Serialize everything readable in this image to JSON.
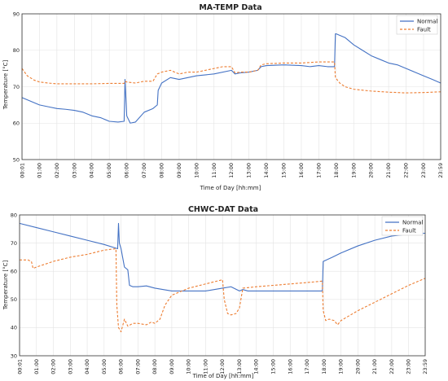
{
  "chart_data": [
    {
      "type": "line",
      "title": "MA-TEMP Data",
      "xlabel": "Time of Day [hh:mm]",
      "ylabel": "Temperature [°C]",
      "ylim": [
        50,
        90
      ],
      "yticks": [
        "50",
        "60",
        "70",
        "80",
        "90"
      ],
      "xticks": [
        "00:01",
        "01:00",
        "02:00",
        "03:00",
        "04:00",
        "05:00",
        "06:00",
        "07:00",
        "08:00",
        "09:00",
        "10:00",
        "11:00",
        "12:00",
        "13:00",
        "14:00",
        "15:00",
        "16:00",
        "17:00",
        "18:00",
        "19:00",
        "20:00",
        "21:00",
        "22:00",
        "23:00",
        "23:59"
      ],
      "grid": true,
      "legend_position": "top-right",
      "series": [
        {
          "name": "Normal",
          "color": "#4472c4",
          "style": "solid",
          "x": [
            0,
            0.5,
            1,
            1.5,
            2,
            2.5,
            3,
            3.5,
            4,
            4.5,
            5,
            5.5,
            5.85,
            5.9,
            6.0,
            6.2,
            6.5,
            7.0,
            7.5,
            7.75,
            7.8,
            8.0,
            8.5,
            9.0,
            9.5,
            10,
            11,
            12,
            12.2,
            12.5,
            13,
            13.5,
            13.7,
            14,
            15,
            16,
            16.5,
            17,
            17.5,
            17.9,
            17.95,
            18.0,
            18.5,
            19,
            19.5,
            20,
            20.5,
            21,
            21.5,
            22,
            22.5,
            23,
            23.5,
            23.98
          ],
          "y": [
            67,
            66,
            65,
            64.5,
            64,
            63.8,
            63.5,
            63,
            62,
            61.5,
            60.5,
            60.3,
            60.5,
            72,
            62,
            60,
            60.3,
            63,
            64,
            65,
            69,
            71,
            72.5,
            72,
            72.5,
            73,
            73.5,
            74.5,
            73.5,
            73.8,
            74,
            74.5,
            75.5,
            75.8,
            76,
            75.8,
            75.5,
            75.8,
            75.5,
            75.5,
            84.5,
            84.5,
            83.5,
            81.5,
            80,
            78.5,
            77.5,
            76.5,
            76,
            75,
            74,
            73,
            72,
            71
          ]
        },
        {
          "name": "Fault",
          "color": "#ed7d31",
          "style": "dashed",
          "x": [
            0,
            0.3,
            0.7,
            1,
            1.5,
            2,
            3,
            4,
            5,
            5.85,
            5.9,
            6.0,
            6.5,
            7.0,
            7.5,
            7.75,
            8.0,
            8.5,
            9.0,
            9.5,
            10,
            11,
            11.5,
            12,
            12.2,
            12.5,
            13,
            13.5,
            13.7,
            14,
            15,
            16,
            17,
            17.9,
            17.95,
            18.2,
            18.5,
            19,
            20,
            21,
            22,
            23,
            23.98
          ],
          "y": [
            75,
            73,
            71.8,
            71.3,
            71,
            70.8,
            70.8,
            70.8,
            70.9,
            70.9,
            71.5,
            71.3,
            71,
            71.5,
            71.5,
            73.5,
            74,
            74.5,
            73.5,
            74,
            74,
            75,
            75.5,
            75.5,
            73.8,
            74,
            74,
            74.5,
            76,
            76.3,
            76.5,
            76.5,
            76.8,
            76.8,
            72.5,
            71,
            70,
            69.3,
            68.8,
            68.5,
            68.3,
            68.4,
            68.6
          ]
        }
      ]
    },
    {
      "type": "line",
      "title": "CHWC-DAT Data",
      "xlabel": "Time of Day [hh:mm]",
      "ylabel": "Temperature [°C]",
      "ylim": [
        30,
        80
      ],
      "yticks": [
        "30",
        "40",
        "50",
        "60",
        "70",
        "80"
      ],
      "xticks": [
        "00:01",
        "01:00",
        "02:00",
        "03:00",
        "04:00",
        "05:00",
        "06:00",
        "07:00",
        "08:00",
        "09:00",
        "10:00",
        "11:00",
        "12:00",
        "13:00",
        "14:00",
        "15:00",
        "16:00",
        "17:00",
        "18:00",
        "19:00",
        "20:00",
        "21:00",
        "22:00",
        "23:00",
        "23:59"
      ],
      "grid": true,
      "legend_position": "top-right",
      "series": [
        {
          "name": "Normal",
          "color": "#4472c4",
          "style": "solid",
          "x": [
            0,
            1,
            2,
            3,
            4,
            5,
            5.8,
            5.85,
            5.9,
            6.0,
            6.2,
            6.4,
            6.5,
            6.7,
            7.0,
            7.5,
            8.0,
            8.5,
            9.0,
            10,
            11,
            12,
            12.5,
            13.0,
            13.2,
            13.5,
            14,
            15,
            16,
            17,
            17.9,
            17.95,
            18.5,
            19,
            20,
            21,
            22,
            23,
            23.98
          ],
          "y": [
            77,
            75.5,
            74,
            72.5,
            71,
            69.5,
            68,
            77,
            70,
            68,
            61.5,
            60.5,
            55,
            54.5,
            54.5,
            54.8,
            54,
            53.5,
            53,
            53,
            53,
            54,
            54.5,
            53,
            53.5,
            53,
            53,
            53,
            53,
            53,
            53,
            63.5,
            65,
            66.5,
            69,
            71,
            72.5,
            73.2,
            73.5
          ]
        },
        {
          "name": "Fault",
          "color": "#ed7d31",
          "style": "dashed",
          "x": [
            0,
            0.5,
            0.7,
            0.8,
            1,
            2,
            3,
            4,
            5,
            5.7,
            5.75,
            5.85,
            6.0,
            6.2,
            6.4,
            6.7,
            7.0,
            7.5,
            7.8,
            8.0,
            8.3,
            8.6,
            9.0,
            10,
            11,
            12,
            12.1,
            12.3,
            12.5,
            12.8,
            13.0,
            13.2,
            14,
            15,
            16,
            17,
            17.9,
            17.95,
            18.1,
            18.3,
            18.6,
            18.8,
            19,
            20,
            21,
            22,
            23,
            23.98
          ],
          "y": [
            64,
            64,
            63.5,
            61,
            61.5,
            63.5,
            65,
            66,
            67.5,
            68,
            48,
            40,
            38.5,
            43,
            40.5,
            41.5,
            41.5,
            41,
            42,
            41.5,
            43,
            48,
            51.5,
            54,
            55.5,
            57,
            50,
            45,
            44.5,
            45,
            47,
            54,
            54.5,
            55,
            55.5,
            56,
            56.5,
            46,
            42.5,
            43,
            42.5,
            41,
            42.5,
            46,
            49,
            52,
            55,
            57.5
          ]
        }
      ]
    }
  ]
}
